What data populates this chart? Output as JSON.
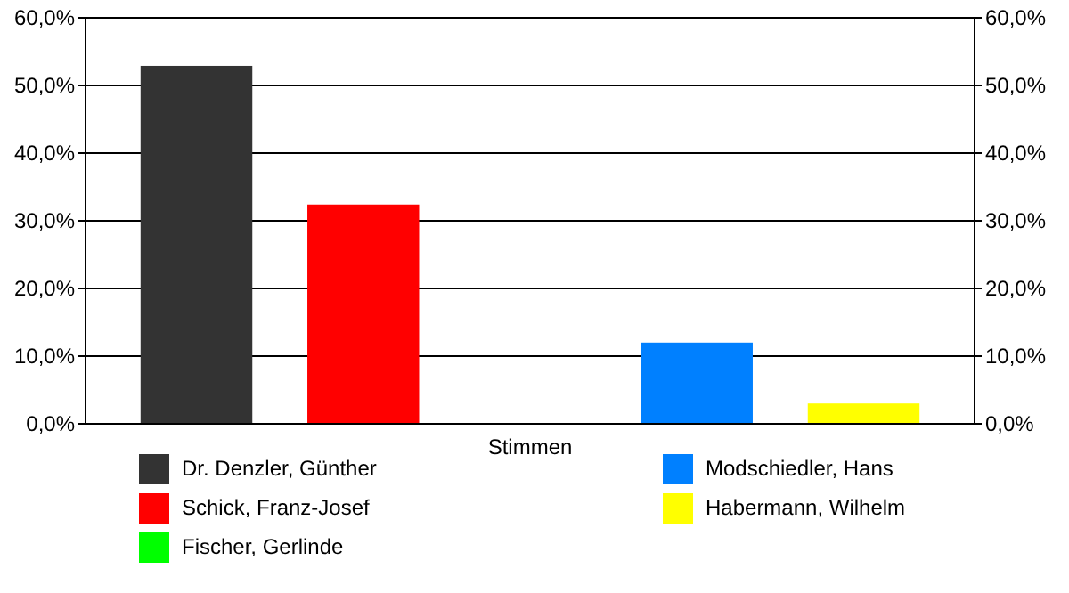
{
  "chart_data": {
    "type": "bar",
    "categories": [
      "Stimmen"
    ],
    "series": [
      {
        "name": "Dr. Denzler, Günther",
        "color": "#333333",
        "values": [
          52.9
        ]
      },
      {
        "name": "Schick, Franz-Josef",
        "color": "#ff0000",
        "values": [
          32.4
        ]
      },
      {
        "name": "Fischer, Gerlinde",
        "color": "#00ff00",
        "values": [
          0
        ]
      },
      {
        "name": "Modschiedler, Hans",
        "color": "#0080ff",
        "values": [
          12.0
        ]
      },
      {
        "name": "Habermann, Wilhelm",
        "color": "#ffff00",
        "values": [
          3.0
        ]
      }
    ],
    "ylim": [
      0,
      60
    ],
    "yticks": [
      {
        "value": 0,
        "label": "0,0%"
      },
      {
        "value": 10,
        "label": "10,0%"
      },
      {
        "value": 20,
        "label": "20,0%"
      },
      {
        "value": 30,
        "label": "30,0%"
      },
      {
        "value": 40,
        "label": "40,0%"
      },
      {
        "value": 50,
        "label": "50,0%"
      },
      {
        "value": 60,
        "label": "60,0%"
      }
    ],
    "grid": "y",
    "legend": "bottom"
  }
}
